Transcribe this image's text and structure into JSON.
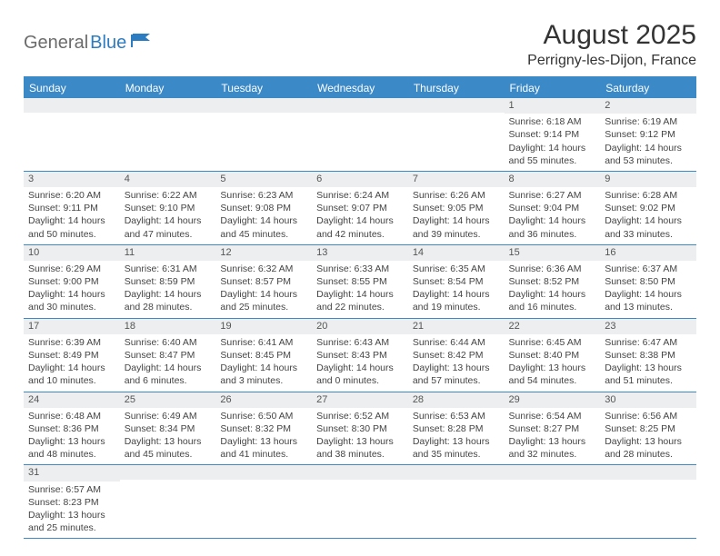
{
  "logo": {
    "word1": "General",
    "word2": "Blue"
  },
  "colors": {
    "header_bg": "#3b89c7",
    "header_text": "#ffffff",
    "daybar_bg": "#eceeef",
    "border": "#3b89c7",
    "logo_gray": "#6b6b6b",
    "logo_blue": "#2b7cc0",
    "text": "#333333"
  },
  "title": "August 2025",
  "subtitle": "Perrigny-les-Dijon, France",
  "weekdays": [
    "Sunday",
    "Monday",
    "Tuesday",
    "Wednesday",
    "Thursday",
    "Friday",
    "Saturday"
  ],
  "weeks": [
    [
      {
        "empty": true
      },
      {
        "empty": true
      },
      {
        "empty": true
      },
      {
        "empty": true
      },
      {
        "empty": true
      },
      {
        "num": "1",
        "sunrise": "Sunrise: 6:18 AM",
        "sunset": "Sunset: 9:14 PM",
        "day1": "Daylight: 14 hours",
        "day2": "and 55 minutes."
      },
      {
        "num": "2",
        "sunrise": "Sunrise: 6:19 AM",
        "sunset": "Sunset: 9:12 PM",
        "day1": "Daylight: 14 hours",
        "day2": "and 53 minutes."
      }
    ],
    [
      {
        "num": "3",
        "sunrise": "Sunrise: 6:20 AM",
        "sunset": "Sunset: 9:11 PM",
        "day1": "Daylight: 14 hours",
        "day2": "and 50 minutes."
      },
      {
        "num": "4",
        "sunrise": "Sunrise: 6:22 AM",
        "sunset": "Sunset: 9:10 PM",
        "day1": "Daylight: 14 hours",
        "day2": "and 47 minutes."
      },
      {
        "num": "5",
        "sunrise": "Sunrise: 6:23 AM",
        "sunset": "Sunset: 9:08 PM",
        "day1": "Daylight: 14 hours",
        "day2": "and 45 minutes."
      },
      {
        "num": "6",
        "sunrise": "Sunrise: 6:24 AM",
        "sunset": "Sunset: 9:07 PM",
        "day1": "Daylight: 14 hours",
        "day2": "and 42 minutes."
      },
      {
        "num": "7",
        "sunrise": "Sunrise: 6:26 AM",
        "sunset": "Sunset: 9:05 PM",
        "day1": "Daylight: 14 hours",
        "day2": "and 39 minutes."
      },
      {
        "num": "8",
        "sunrise": "Sunrise: 6:27 AM",
        "sunset": "Sunset: 9:04 PM",
        "day1": "Daylight: 14 hours",
        "day2": "and 36 minutes."
      },
      {
        "num": "9",
        "sunrise": "Sunrise: 6:28 AM",
        "sunset": "Sunset: 9:02 PM",
        "day1": "Daylight: 14 hours",
        "day2": "and 33 minutes."
      }
    ],
    [
      {
        "num": "10",
        "sunrise": "Sunrise: 6:29 AM",
        "sunset": "Sunset: 9:00 PM",
        "day1": "Daylight: 14 hours",
        "day2": "and 30 minutes."
      },
      {
        "num": "11",
        "sunrise": "Sunrise: 6:31 AM",
        "sunset": "Sunset: 8:59 PM",
        "day1": "Daylight: 14 hours",
        "day2": "and 28 minutes."
      },
      {
        "num": "12",
        "sunrise": "Sunrise: 6:32 AM",
        "sunset": "Sunset: 8:57 PM",
        "day1": "Daylight: 14 hours",
        "day2": "and 25 minutes."
      },
      {
        "num": "13",
        "sunrise": "Sunrise: 6:33 AM",
        "sunset": "Sunset: 8:55 PM",
        "day1": "Daylight: 14 hours",
        "day2": "and 22 minutes."
      },
      {
        "num": "14",
        "sunrise": "Sunrise: 6:35 AM",
        "sunset": "Sunset: 8:54 PM",
        "day1": "Daylight: 14 hours",
        "day2": "and 19 minutes."
      },
      {
        "num": "15",
        "sunrise": "Sunrise: 6:36 AM",
        "sunset": "Sunset: 8:52 PM",
        "day1": "Daylight: 14 hours",
        "day2": "and 16 minutes."
      },
      {
        "num": "16",
        "sunrise": "Sunrise: 6:37 AM",
        "sunset": "Sunset: 8:50 PM",
        "day1": "Daylight: 14 hours",
        "day2": "and 13 minutes."
      }
    ],
    [
      {
        "num": "17",
        "sunrise": "Sunrise: 6:39 AM",
        "sunset": "Sunset: 8:49 PM",
        "day1": "Daylight: 14 hours",
        "day2": "and 10 minutes."
      },
      {
        "num": "18",
        "sunrise": "Sunrise: 6:40 AM",
        "sunset": "Sunset: 8:47 PM",
        "day1": "Daylight: 14 hours",
        "day2": "and 6 minutes."
      },
      {
        "num": "19",
        "sunrise": "Sunrise: 6:41 AM",
        "sunset": "Sunset: 8:45 PM",
        "day1": "Daylight: 14 hours",
        "day2": "and 3 minutes."
      },
      {
        "num": "20",
        "sunrise": "Sunrise: 6:43 AM",
        "sunset": "Sunset: 8:43 PM",
        "day1": "Daylight: 14 hours",
        "day2": "and 0 minutes."
      },
      {
        "num": "21",
        "sunrise": "Sunrise: 6:44 AM",
        "sunset": "Sunset: 8:42 PM",
        "day1": "Daylight: 13 hours",
        "day2": "and 57 minutes."
      },
      {
        "num": "22",
        "sunrise": "Sunrise: 6:45 AM",
        "sunset": "Sunset: 8:40 PM",
        "day1": "Daylight: 13 hours",
        "day2": "and 54 minutes."
      },
      {
        "num": "23",
        "sunrise": "Sunrise: 6:47 AM",
        "sunset": "Sunset: 8:38 PM",
        "day1": "Daylight: 13 hours",
        "day2": "and 51 minutes."
      }
    ],
    [
      {
        "num": "24",
        "sunrise": "Sunrise: 6:48 AM",
        "sunset": "Sunset: 8:36 PM",
        "day1": "Daylight: 13 hours",
        "day2": "and 48 minutes."
      },
      {
        "num": "25",
        "sunrise": "Sunrise: 6:49 AM",
        "sunset": "Sunset: 8:34 PM",
        "day1": "Daylight: 13 hours",
        "day2": "and 45 minutes."
      },
      {
        "num": "26",
        "sunrise": "Sunrise: 6:50 AM",
        "sunset": "Sunset: 8:32 PM",
        "day1": "Daylight: 13 hours",
        "day2": "and 41 minutes."
      },
      {
        "num": "27",
        "sunrise": "Sunrise: 6:52 AM",
        "sunset": "Sunset: 8:30 PM",
        "day1": "Daylight: 13 hours",
        "day2": "and 38 minutes."
      },
      {
        "num": "28",
        "sunrise": "Sunrise: 6:53 AM",
        "sunset": "Sunset: 8:28 PM",
        "day1": "Daylight: 13 hours",
        "day2": "and 35 minutes."
      },
      {
        "num": "29",
        "sunrise": "Sunrise: 6:54 AM",
        "sunset": "Sunset: 8:27 PM",
        "day1": "Daylight: 13 hours",
        "day2": "and 32 minutes."
      },
      {
        "num": "30",
        "sunrise": "Sunrise: 6:56 AM",
        "sunset": "Sunset: 8:25 PM",
        "day1": "Daylight: 13 hours",
        "day2": "and 28 minutes."
      }
    ],
    [
      {
        "num": "31",
        "sunrise": "Sunrise: 6:57 AM",
        "sunset": "Sunset: 8:23 PM",
        "day1": "Daylight: 13 hours",
        "day2": "and 25 minutes."
      },
      {
        "empty": true
      },
      {
        "empty": true
      },
      {
        "empty": true
      },
      {
        "empty": true
      },
      {
        "empty": true
      },
      {
        "empty": true
      }
    ]
  ]
}
